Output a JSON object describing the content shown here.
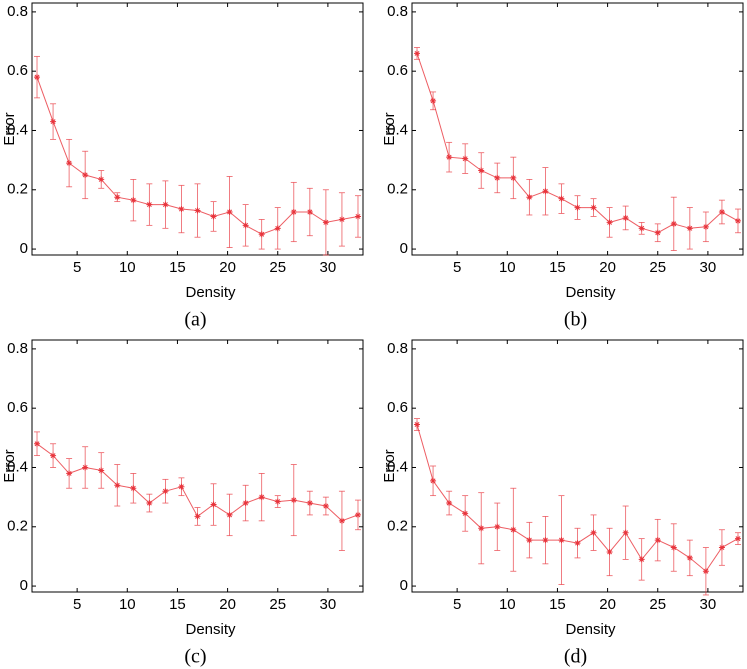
{
  "chart_data": [
    {
      "type": "line",
      "caption": "(a)",
      "xlabel": "Density",
      "ylabel": "Error",
      "color": "#e8343c",
      "x": [
        1,
        2.6,
        4.2,
        5.8,
        7.4,
        9,
        10.6,
        12.2,
        13.8,
        15.4,
        17,
        18.6,
        20.2,
        21.8,
        23.4,
        25,
        26.6,
        28.2,
        29.8,
        31.4,
        33
      ],
      "values": [
        0.58,
        0.43,
        0.29,
        0.25,
        0.235,
        0.175,
        0.165,
        0.15,
        0.15,
        0.135,
        0.13,
        0.11,
        0.125,
        0.08,
        0.05,
        0.07,
        0.125,
        0.125,
        0.09,
        0.1,
        0.11
      ],
      "errors": [
        0.07,
        0.06,
        0.08,
        0.08,
        0.03,
        0.015,
        0.07,
        0.07,
        0.08,
        0.08,
        0.09,
        0.05,
        0.12,
        0.07,
        0.05,
        0.07,
        0.1,
        0.08,
        0.11,
        0.09,
        0.07
      ],
      "xlim": [
        0.5,
        33.5
      ],
      "xticks": [
        5,
        10,
        15,
        20,
        25,
        30
      ],
      "ylim": [
        -0.02,
        0.83
      ],
      "yticks": [
        0,
        0.2,
        0.4,
        0.6,
        0.8
      ]
    },
    {
      "type": "line",
      "caption": "(b)",
      "xlabel": "Density",
      "ylabel": "Error",
      "color": "#e8343c",
      "x": [
        1,
        2.6,
        4.2,
        5.8,
        7.4,
        9,
        10.6,
        12.2,
        13.8,
        15.4,
        17,
        18.6,
        20.2,
        21.8,
        23.4,
        25,
        26.6,
        28.2,
        29.8,
        31.4,
        33
      ],
      "values": [
        0.66,
        0.5,
        0.31,
        0.305,
        0.265,
        0.24,
        0.24,
        0.175,
        0.195,
        0.17,
        0.14,
        0.14,
        0.09,
        0.105,
        0.07,
        0.055,
        0.085,
        0.07,
        0.075,
        0.125,
        0.095
      ],
      "errors": [
        0.02,
        0.03,
        0.05,
        0.05,
        0.06,
        0.05,
        0.07,
        0.06,
        0.08,
        0.05,
        0.04,
        0.03,
        0.05,
        0.04,
        0.02,
        0.03,
        0.09,
        0.07,
        0.05,
        0.04,
        0.04
      ],
      "xlim": [
        0.5,
        33.5
      ],
      "xticks": [
        5,
        10,
        15,
        20,
        25,
        30
      ],
      "ylim": [
        -0.02,
        0.83
      ],
      "yticks": [
        0,
        0.2,
        0.4,
        0.6,
        0.8
      ]
    },
    {
      "type": "line",
      "caption": "(c)",
      "xlabel": "Density",
      "ylabel": "Error",
      "color": "#e8343c",
      "x": [
        1,
        2.6,
        4.2,
        5.8,
        7.4,
        9,
        10.6,
        12.2,
        13.8,
        15.4,
        17,
        18.6,
        20.2,
        21.8,
        23.4,
        25,
        26.6,
        28.2,
        29.8,
        31.4,
        33
      ],
      "values": [
        0.48,
        0.44,
        0.38,
        0.4,
        0.39,
        0.34,
        0.33,
        0.28,
        0.32,
        0.335,
        0.235,
        0.275,
        0.24,
        0.28,
        0.3,
        0.285,
        0.29,
        0.28,
        0.27,
        0.22,
        0.24
      ],
      "errors": [
        0.04,
        0.04,
        0.05,
        0.07,
        0.06,
        0.07,
        0.05,
        0.03,
        0.04,
        0.03,
        0.03,
        0.07,
        0.07,
        0.06,
        0.08,
        0.02,
        0.12,
        0.04,
        0.03,
        0.1,
        0.05
      ],
      "xlim": [
        0.5,
        33.5
      ],
      "xticks": [
        5,
        10,
        15,
        20,
        25,
        30
      ],
      "ylim": [
        -0.02,
        0.83
      ],
      "yticks": [
        0,
        0.2,
        0.4,
        0.6,
        0.8
      ]
    },
    {
      "type": "line",
      "caption": "(d)",
      "xlabel": "Density",
      "ylabel": "Error",
      "color": "#e8343c",
      "x": [
        1,
        2.6,
        4.2,
        5.8,
        7.4,
        9,
        10.6,
        12.2,
        13.8,
        15.4,
        17,
        18.6,
        20.2,
        21.8,
        23.4,
        25,
        26.6,
        28.2,
        29.8,
        31.4,
        33
      ],
      "values": [
        0.545,
        0.355,
        0.28,
        0.245,
        0.195,
        0.2,
        0.19,
        0.155,
        0.155,
        0.155,
        0.145,
        0.18,
        0.115,
        0.18,
        0.09,
        0.155,
        0.13,
        0.095,
        0.05,
        0.13,
        0.16
      ],
      "errors": [
        0.02,
        0.05,
        0.04,
        0.06,
        0.12,
        0.08,
        0.14,
        0.06,
        0.08,
        0.15,
        0.05,
        0.06,
        0.08,
        0.09,
        0.07,
        0.07,
        0.08,
        0.06,
        0.08,
        0.06,
        0.02
      ],
      "xlim": [
        0.5,
        33.5
      ],
      "xticks": [
        5,
        10,
        15,
        20,
        25,
        30
      ],
      "ylim": [
        -0.02,
        0.83
      ],
      "yticks": [
        0,
        0.2,
        0.4,
        0.6,
        0.8
      ]
    }
  ]
}
